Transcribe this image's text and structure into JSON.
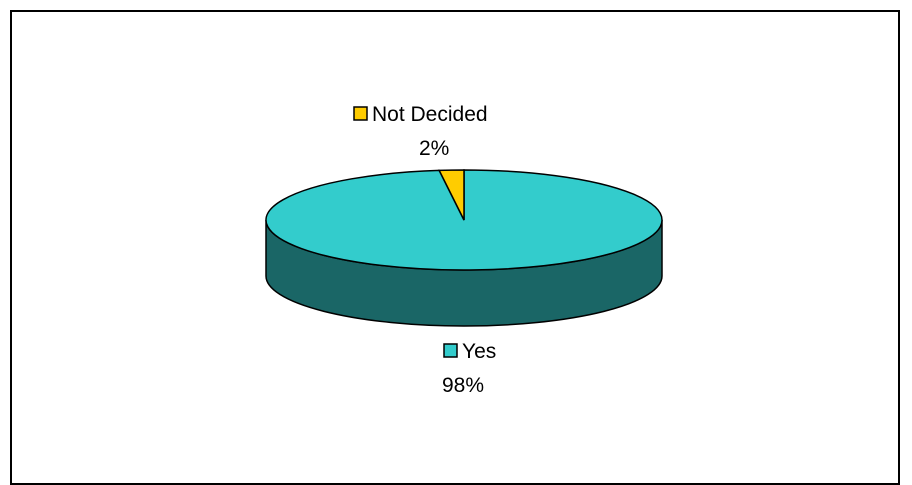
{
  "chart_data": {
    "type": "pie",
    "style": "3d",
    "title": "",
    "slices": [
      {
        "label": "Yes",
        "value": 98,
        "display": "98%",
        "color": "#33CCCC",
        "side_color": "#1A6666"
      },
      {
        "label": "Not Decided",
        "value": 2,
        "display": "2%",
        "color": "#FFCC00",
        "side_color": "#806600"
      }
    ],
    "legend": "none",
    "labels": "outside"
  }
}
